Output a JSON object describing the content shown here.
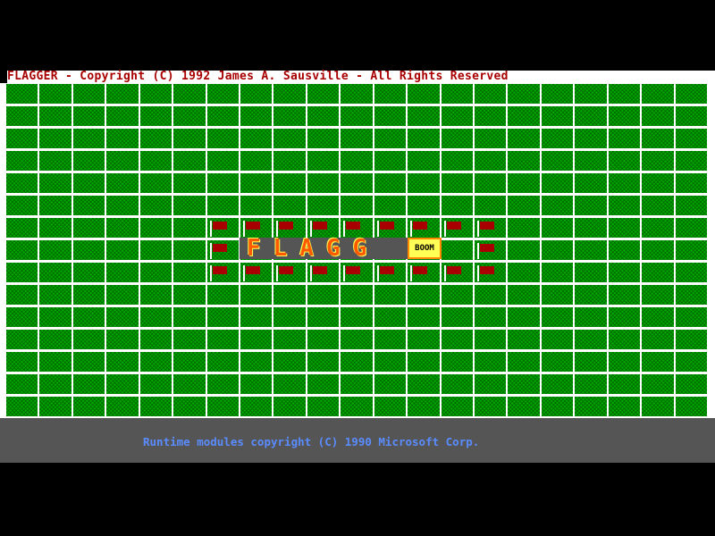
{
  "title_bar": "FLAGGER - Copyright (C) 1992 James A. Sausville - All Rights Reserved",
  "board": {
    "columns": 21,
    "rows": 15,
    "flag_cells": [
      [
        6,
        6
      ],
      [
        6,
        7
      ],
      [
        6,
        8
      ],
      [
        6,
        9
      ],
      [
        6,
        10
      ],
      [
        6,
        11
      ],
      [
        6,
        12
      ],
      [
        6,
        13
      ],
      [
        6,
        14
      ],
      [
        7,
        6
      ],
      [
        7,
        14
      ],
      [
        8,
        6
      ],
      [
        8,
        7
      ],
      [
        8,
        8
      ],
      [
        8,
        9
      ],
      [
        8,
        10
      ],
      [
        8,
        11
      ],
      [
        8,
        12
      ],
      [
        8,
        13
      ],
      [
        8,
        14
      ]
    ],
    "cell_color": "#00a800",
    "flag_color": "#a80000"
  },
  "logo": {
    "text": "FLAGG",
    "boom": "BOOM"
  },
  "footer": "Runtime modules copyright (C) 1990 Microsoft Corp."
}
